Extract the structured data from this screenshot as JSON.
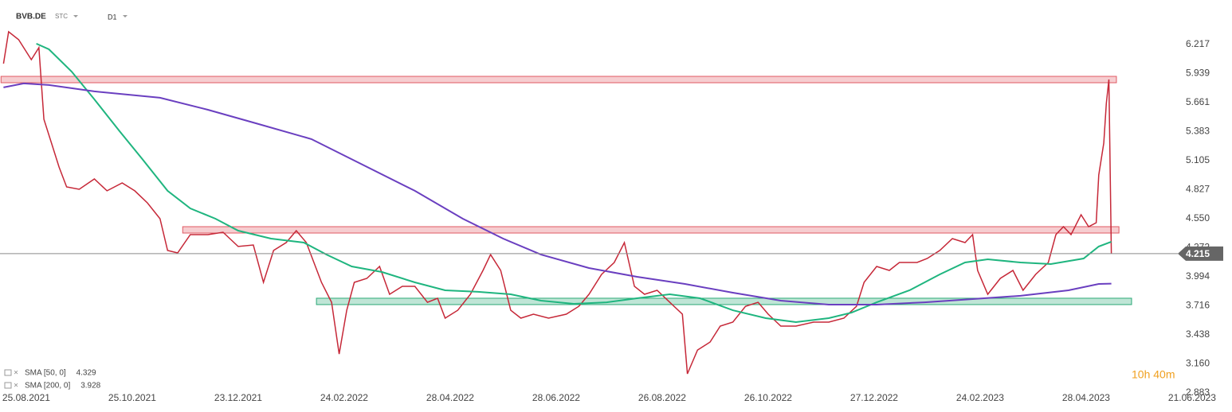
{
  "header": {
    "symbol": "BVB.DE",
    "kind": "STC",
    "interval": "D1"
  },
  "countdown": "10h 40m",
  "chart_data": {
    "type": "line",
    "xlim": [
      -10.4,
      477.8
    ],
    "ylim": [
      2.912,
      6.643
    ],
    "xticks": [
      {
        "value": 0,
        "label": "25.08.2021"
      },
      {
        "value": 42,
        "label": "25.10.2021"
      },
      {
        "value": 84,
        "label": "23.12.2021"
      },
      {
        "value": 126,
        "label": "24.02.2022"
      },
      {
        "value": 168,
        "label": "28.04.2022"
      },
      {
        "value": 210,
        "label": "28.06.2022"
      },
      {
        "value": 252,
        "label": "26.08.2022"
      },
      {
        "value": 294,
        "label": "26.10.2022"
      },
      {
        "value": 336,
        "label": "27.12.2022"
      },
      {
        "value": 378,
        "label": "24.02.2023"
      },
      {
        "value": 420,
        "label": "28.04.2023"
      },
      {
        "value": 462,
        "label": "21.06.2023"
      }
    ],
    "yticks": [
      6.217,
      5.939,
      5.661,
      5.383,
      5.105,
      4.827,
      {
        "value": 4.55,
        "label": "4.550"
      },
      4.272,
      3.994,
      3.716,
      3.438,
      {
        "value": 3.16,
        "label": "3.160"
      },
      2.883
    ],
    "grid": false,
    "last_price": 4.215,
    "zones": [
      {
        "low": 5.851,
        "high": 5.912,
        "x0": -10,
        "x1": 432,
        "color": "#e05a63"
      },
      {
        "low": 4.412,
        "high": 4.473,
        "x0": 62,
        "x1": 433,
        "color": "#e05a63"
      },
      {
        "low": 3.727,
        "high": 3.788,
        "x0": 115,
        "x1": 438,
        "color": "#2aa876"
      }
    ],
    "series": [
      {
        "color": "#c62838",
        "x": [
          -9,
          -7,
          -3,
          2,
          5,
          7,
          10,
          13,
          16,
          21,
          27,
          32,
          38,
          43,
          48,
          53,
          56,
          60,
          65,
          72,
          78,
          84,
          90,
          94,
          98,
          103,
          107,
          111,
          114,
          117,
          121,
          124,
          127,
          130,
          135,
          140,
          144,
          149,
          154,
          159,
          163,
          166,
          171,
          176,
          181,
          184,
          188,
          192,
          196,
          201,
          207,
          214,
          219,
          223,
          228,
          233,
          237,
          241,
          245,
          250,
          255,
          260,
          262,
          266,
          271,
          275,
          280,
          285,
          290,
          294,
          299,
          305,
          312,
          318,
          324,
          329,
          332,
          337,
          342,
          346,
          353,
          357,
          362,
          367,
          372,
          375,
          377,
          381,
          386,
          391,
          395,
          400,
          405,
          408,
          411,
          414,
          418,
          421,
          424,
          425,
          427,
          428,
          429,
          430
        ],
        "values": [
          6.034,
          6.339,
          6.263,
          6.072,
          6.187,
          5.501,
          5.273,
          5.044,
          4.854,
          4.831,
          4.93,
          4.816,
          4.892,
          4.816,
          4.701,
          4.549,
          4.245,
          4.222,
          4.397,
          4.397,
          4.42,
          4.283,
          4.298,
          3.94,
          4.245,
          4.321,
          4.435,
          4.321,
          4.13,
          3.94,
          3.749,
          3.254,
          3.673,
          3.94,
          3.978,
          4.092,
          3.826,
          3.902,
          3.902,
          3.749,
          3.788,
          3.597,
          3.673,
          3.826,
          4.054,
          4.206,
          4.054,
          3.673,
          3.597,
          3.635,
          3.597,
          3.635,
          3.711,
          3.826,
          4.016,
          4.13,
          4.321,
          3.902,
          3.826,
          3.864,
          3.749,
          3.635,
          3.064,
          3.292,
          3.369,
          3.521,
          3.559,
          3.711,
          3.749,
          3.635,
          3.521,
          3.521,
          3.559,
          3.559,
          3.597,
          3.711,
          3.94,
          4.092,
          4.054,
          4.13,
          4.13,
          4.168,
          4.245,
          4.359,
          4.321,
          4.397,
          4.054,
          3.826,
          3.978,
          4.054,
          3.864,
          4.016,
          4.13,
          4.397,
          4.473,
          4.397,
          4.587,
          4.473,
          4.511,
          4.968,
          5.273,
          5.653,
          5.882,
          4.215
        ]
      },
      {
        "name": "SMA [50, 0]",
        "legend_value": 4.329,
        "color": "#1fb57f",
        "x": [
          4,
          9,
          18,
          27,
          37,
          46,
          56,
          65,
          75,
          84,
          97,
          110,
          119,
          129,
          141,
          154,
          166,
          179,
          192,
          204,
          217,
          230,
          242,
          255,
          267,
          280,
          293,
          305,
          318,
          327,
          337,
          350,
          362,
          372,
          381,
          394,
          406,
          419,
          425,
          430
        ],
        "values": [
          6.225,
          6.171,
          5.958,
          5.692,
          5.387,
          5.12,
          4.816,
          4.648,
          4.549,
          4.435,
          4.359,
          4.321,
          4.206,
          4.092,
          4.039,
          3.94,
          3.864,
          3.849,
          3.826,
          3.765,
          3.734,
          3.749,
          3.788,
          3.826,
          3.788,
          3.673,
          3.597,
          3.559,
          3.597,
          3.65,
          3.749,
          3.864,
          4.016,
          4.13,
          4.161,
          4.13,
          4.115,
          4.168,
          4.283,
          4.329
        ]
      },
      {
        "name": "SMA [200, 0]",
        "legend_value": 3.928,
        "color": "#6a3fc0",
        "x": [
          -9,
          -1,
          9,
          27,
          53,
          72,
          91,
          113,
          132,
          154,
          173,
          189,
          204,
          223,
          242,
          261,
          280,
          299,
          318,
          337,
          356,
          375,
          394,
          413,
          425,
          430
        ],
        "values": [
          5.806,
          5.844,
          5.829,
          5.768,
          5.707,
          5.592,
          5.463,
          5.311,
          5.082,
          4.816,
          4.549,
          4.359,
          4.206,
          4.077,
          3.993,
          3.925,
          3.841,
          3.765,
          3.727,
          3.727,
          3.749,
          3.78,
          3.811,
          3.864,
          3.925,
          3.928
        ]
      }
    ]
  }
}
